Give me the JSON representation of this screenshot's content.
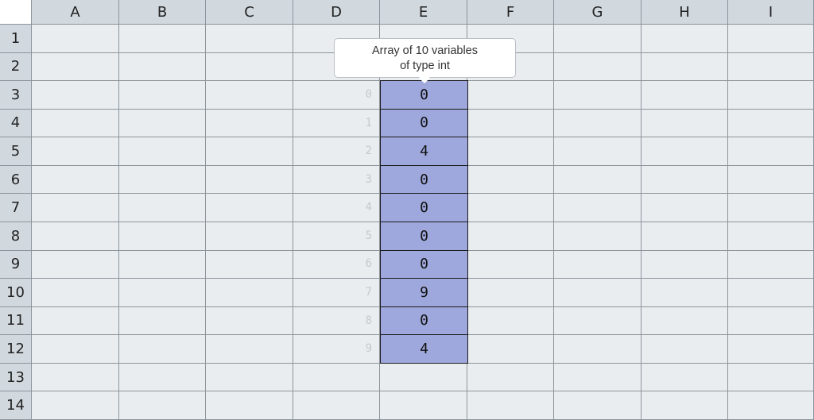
{
  "columns": [
    "A",
    "B",
    "C",
    "D",
    "E",
    "F",
    "G",
    "H",
    "I"
  ],
  "rows": [
    "1",
    "2",
    "3",
    "4",
    "5",
    "6",
    "7",
    "8",
    "9",
    "10",
    "11",
    "12",
    "13",
    "14"
  ],
  "array": {
    "tooltip_line1": "Array of 10 variables",
    "tooltip_line2": "of type int",
    "indices": [
      "0",
      "1",
      "2",
      "3",
      "4",
      "5",
      "6",
      "7",
      "8",
      "9"
    ],
    "values": [
      "0",
      "0",
      "4",
      "0",
      "0",
      "0",
      "0",
      "9",
      "0",
      "4"
    ],
    "column": "E",
    "start_row": 3,
    "fill_color": "#9ea8dc"
  }
}
